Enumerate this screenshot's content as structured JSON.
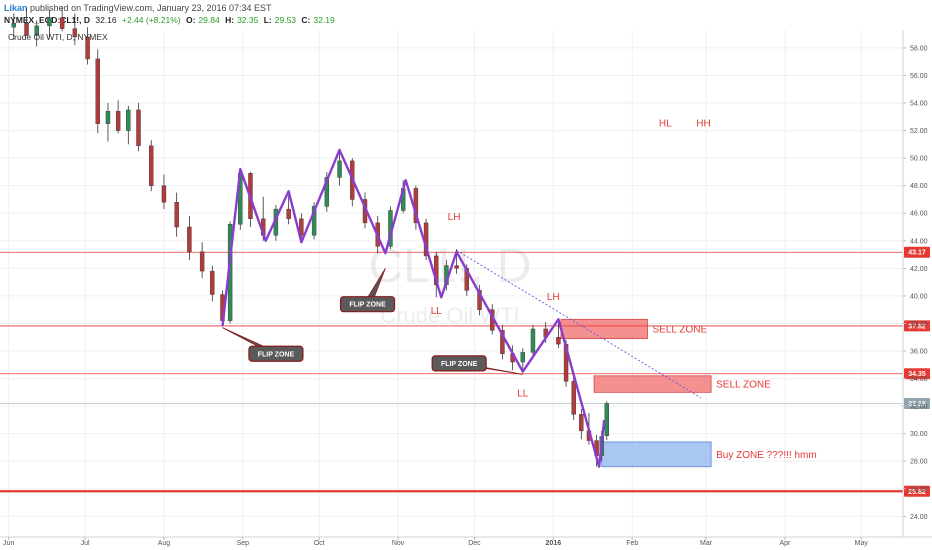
{
  "header": {
    "author": "Likan",
    "published": "published on TradingView.com, January 23, 2016 07:34 EST",
    "symbol": "NYMEX_EOD:CL1!, D",
    "last": "32.16",
    "change": "+2.44 (+8.21%)",
    "o_label": "O:",
    "o_value": "29.84",
    "h_label": "H:",
    "h_value": "32.35",
    "l_label": "L:",
    "l_value": "29.53",
    "c_label": "C:",
    "c_value": "32.19",
    "symbol_line": "Crude Oil WTI, D, NYMEX"
  },
  "chart_data": {
    "type": "candlestick",
    "watermark": "CL1!, D",
    "watermark_sub": "Crude Oil WTI",
    "x_ticks": [
      "Jun",
      "Jul",
      "Aug",
      "Sep",
      "Oct",
      "Nov",
      "Dec",
      "2016",
      "Feb",
      "Mar",
      "Apr",
      "May"
    ],
    "y_ticks": [
      "24.00",
      "26.00",
      "28.00",
      "30.00",
      "32.00",
      "34.00",
      "36.00",
      "38.00",
      "40.00",
      "42.00",
      "44.00",
      "46.00",
      "48.00",
      "50.00",
      "52.00",
      "54.00",
      "56.00",
      "58.00"
    ],
    "ylim": [
      22.5,
      59.3
    ],
    "horizontal_levels": [
      {
        "value": 43.17,
        "label": "43.17",
        "color": "#e53935"
      },
      {
        "value": 37.82,
        "label": "37.82",
        "color": "#e53935"
      },
      {
        "value": 34.35,
        "label": "34.35",
        "color": "#e53935"
      },
      {
        "value": 32.19,
        "label": "32.19",
        "color": "#90a4ae"
      },
      {
        "value": 25.82,
        "label": "25.82",
        "color": "#e53935"
      }
    ],
    "zigzag": [
      {
        "date": "2015-08-24",
        "price": 37.8
      },
      {
        "date": "2015-08-31",
        "price": 49.2
      },
      {
        "date": "2015-09-10",
        "price": 44.0
      },
      {
        "date": "2015-09-19",
        "price": 47.6
      },
      {
        "date": "2015-09-24",
        "price": 43.9
      },
      {
        "date": "2015-10-09",
        "price": 50.6
      },
      {
        "date": "2015-10-27",
        "price": 43.1
      },
      {
        "date": "2015-11-04",
        "price": 48.4
      },
      {
        "date": "2015-11-18",
        "price": 39.9
      },
      {
        "date": "2015-11-24",
        "price": 43.2
      },
      {
        "date": "2015-12-20",
        "price": 34.5
      },
      {
        "date": "2016-01-03",
        "price": 38.3
      },
      {
        "date": "2016-01-19",
        "price": 27.6
      },
      {
        "date": "2016-01-21",
        "price": 31.0
      }
    ],
    "candles": [
      [
        "2015-06-03",
        59.5,
        60.5,
        58.6,
        59.8
      ],
      [
        "2015-06-08",
        59.8,
        60.9,
        58.9,
        58.9
      ],
      [
        "2015-06-12",
        58.9,
        60.0,
        58.1,
        59.6
      ],
      [
        "2015-06-17",
        59.6,
        60.8,
        58.7,
        60.2
      ],
      [
        "2015-06-22",
        60.2,
        61.0,
        59.2,
        59.4
      ],
      [
        "2015-06-27",
        59.4,
        60.5,
        58.2,
        58.8
      ],
      [
        "2015-07-02",
        58.8,
        59.5,
        56.8,
        57.2
      ],
      [
        "2015-07-06",
        57.2,
        57.9,
        51.8,
        52.5
      ],
      [
        "2015-07-10",
        52.5,
        54.0,
        51.2,
        53.4
      ],
      [
        "2015-07-14",
        53.4,
        54.2,
        51.8,
        52.0
      ],
      [
        "2015-07-18",
        52.0,
        53.8,
        51.0,
        53.5
      ],
      [
        "2015-07-22",
        53.5,
        54.0,
        50.5,
        50.9
      ],
      [
        "2015-07-27",
        50.9,
        51.3,
        47.6,
        48.0
      ],
      [
        "2015-08-01",
        48.0,
        48.8,
        46.3,
        46.8
      ],
      [
        "2015-08-06",
        46.8,
        47.5,
        44.3,
        45.0
      ],
      [
        "2015-08-11",
        45.0,
        45.8,
        42.6,
        43.2
      ],
      [
        "2015-08-16",
        43.2,
        43.9,
        41.3,
        41.8
      ],
      [
        "2015-08-20",
        41.8,
        42.2,
        39.6,
        40.1
      ],
      [
        "2015-08-24",
        40.1,
        40.4,
        37.8,
        38.2
      ],
      [
        "2015-08-27",
        38.2,
        45.4,
        38.0,
        45.2
      ],
      [
        "2015-08-31",
        45.2,
        49.2,
        44.8,
        48.9
      ],
      [
        "2015-09-04",
        48.9,
        49.0,
        45.0,
        45.6
      ],
      [
        "2015-09-09",
        45.6,
        47.2,
        44.0,
        44.4
      ],
      [
        "2015-09-14",
        44.4,
        46.6,
        44.0,
        46.3
      ],
      [
        "2015-09-19",
        46.3,
        47.6,
        45.2,
        45.6
      ],
      [
        "2015-09-24",
        45.6,
        46.0,
        43.9,
        44.4
      ],
      [
        "2015-09-29",
        44.4,
        46.8,
        44.1,
        46.5
      ],
      [
        "2015-10-04",
        46.5,
        49.0,
        46.1,
        48.6
      ],
      [
        "2015-10-09",
        48.6,
        50.6,
        48.0,
        49.8
      ],
      [
        "2015-10-14",
        49.8,
        50.0,
        46.5,
        47.0
      ],
      [
        "2015-10-19",
        47.0,
        47.5,
        44.9,
        45.3
      ],
      [
        "2015-10-24",
        45.3,
        45.8,
        43.1,
        43.6
      ],
      [
        "2015-10-29",
        43.6,
        46.5,
        43.4,
        46.2
      ],
      [
        "2015-11-03",
        46.2,
        48.4,
        46.0,
        47.8
      ],
      [
        "2015-11-08",
        47.8,
        48.0,
        44.8,
        45.3
      ],
      [
        "2015-11-12",
        45.3,
        45.6,
        42.6,
        42.9
      ],
      [
        "2015-11-16",
        42.9,
        43.2,
        39.9,
        40.8
      ],
      [
        "2015-11-20",
        40.8,
        42.6,
        40.4,
        42.2
      ],
      [
        "2015-11-24",
        42.2,
        43.4,
        41.6,
        42.0
      ],
      [
        "2015-11-28",
        42.0,
        42.3,
        40.0,
        40.4
      ],
      [
        "2015-12-03",
        40.4,
        40.8,
        38.6,
        39.0
      ],
      [
        "2015-12-08",
        39.0,
        39.4,
        37.2,
        37.5
      ],
      [
        "2015-12-12",
        37.5,
        37.9,
        35.4,
        35.8
      ],
      [
        "2015-12-16",
        35.8,
        36.4,
        34.6,
        35.2
      ],
      [
        "2015-12-20",
        35.2,
        36.2,
        34.5,
        35.9
      ],
      [
        "2015-12-24",
        35.9,
        37.9,
        35.6,
        37.6
      ],
      [
        "2015-12-29",
        37.6,
        38.1,
        36.6,
        37.0
      ],
      [
        "2016-01-03",
        37.0,
        38.3,
        36.2,
        36.5
      ],
      [
        "2016-01-06",
        36.5,
        36.8,
        33.4,
        33.8
      ],
      [
        "2016-01-09",
        33.8,
        34.2,
        31.0,
        31.4
      ],
      [
        "2016-01-12",
        31.4,
        31.8,
        29.6,
        30.2
      ],
      [
        "2016-01-15",
        30.2,
        31.5,
        29.2,
        29.5
      ],
      [
        "2016-01-18",
        29.5,
        29.9,
        27.6,
        28.4
      ],
      [
        "2016-01-20",
        28.4,
        30.2,
        28.0,
        29.8
      ],
      [
        "2016-01-22",
        29.84,
        32.35,
        29.53,
        32.19
      ]
    ],
    "zones": [
      {
        "label": "SELL ZONE",
        "date_start": "2016-01-04",
        "date_end": "2016-02-07",
        "price_low": 36.9,
        "price_high": 38.3,
        "color": "#f26b6b"
      },
      {
        "label": "SELL ZONE",
        "date_start": "2016-01-17",
        "date_end": "2016-03-03",
        "price_low": 33.0,
        "price_high": 34.2,
        "color": "#f26b6b"
      },
      {
        "label": "Buy ZONE ???!!! hmm",
        "date_start": "2016-01-20",
        "date_end": "2016-03-03",
        "price_low": 27.6,
        "price_high": 29.4,
        "color": "#8fb4f0"
      }
    ],
    "trendline": [
      {
        "date": "2015-11-24",
        "price": 43.3
      },
      {
        "date": "2016-02-28",
        "price": 32.6
      }
    ],
    "labels": [
      {
        "text": "LH",
        "date": "2015-11-23",
        "price": 45.5
      },
      {
        "text": "LL",
        "date": "2015-11-16",
        "price": 38.7
      },
      {
        "text": "LH",
        "date": "2016-01-01",
        "price": 39.7
      },
      {
        "text": "LL",
        "date": "2015-12-20",
        "price": 32.7
      },
      {
        "text": "HL",
        "date": "2016-02-14",
        "price": 52.3
      },
      {
        "text": "HH",
        "date": "2016-02-29",
        "price": 52.3
      }
    ],
    "callouts": [
      {
        "text": "FLIP ZONE",
        "date": "2015-09-14",
        "price": 35.8,
        "pointer_date": "2015-08-24",
        "pointer_price": 37.7
      },
      {
        "text": "FLIP ZONE",
        "date": "2015-10-20",
        "price": 39.4,
        "pointer_date": "2015-10-27",
        "pointer_price": 42.0
      },
      {
        "text": "FLIP ZONE",
        "date": "2015-11-25",
        "price": 35.1,
        "pointer_date": "2015-12-20",
        "pointer_price": 34.3
      }
    ]
  }
}
